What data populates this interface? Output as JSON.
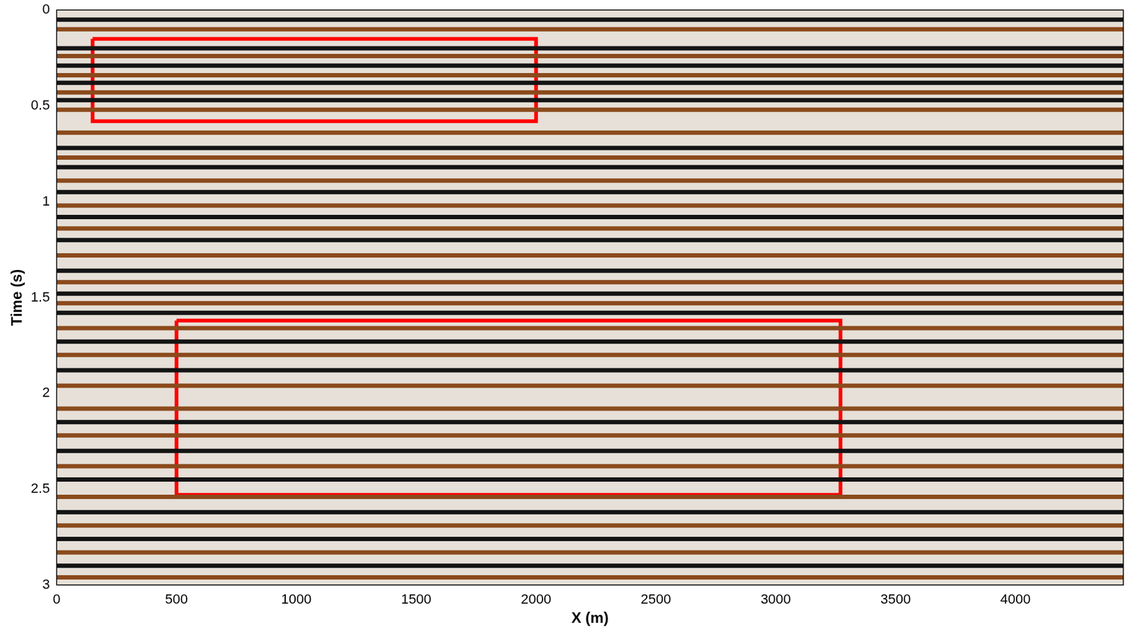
{
  "chart_data": {
    "type": "seismic_section",
    "x_label": "X (m)",
    "y_label": "Time (s)",
    "xlim": [
      0,
      4450
    ],
    "xticks": [
      0,
      500,
      1000,
      1500,
      2000,
      2500,
      3000,
      3500,
      4000
    ],
    "ylim": [
      0,
      3
    ],
    "yticks": [
      0,
      0.5,
      1,
      1.5,
      2,
      2.5,
      3
    ],
    "grid": false,
    "reflectors": [
      {
        "color": "#141414",
        "times": [
          0.05,
          0.2,
          0.29,
          0.38,
          0.47,
          0.72,
          0.82,
          0.95,
          1.08,
          1.2,
          1.36,
          1.48,
          1.58,
          1.73,
          1.88,
          2.15,
          2.3,
          2.45,
          2.62,
          2.76,
          2.9
        ]
      },
      {
        "color": "#8b4a1c",
        "times": [
          0.1,
          0.24,
          0.34,
          0.43,
          0.52,
          0.64,
          0.77,
          0.89,
          1.02,
          1.14,
          1.28,
          1.42,
          1.53,
          1.66,
          1.8,
          1.96,
          2.08,
          2.22,
          2.38,
          2.54,
          2.69,
          2.83,
          2.96
        ]
      }
    ],
    "boxes": [
      {
        "x": [
          150,
          2000
        ],
        "y": [
          0.15,
          0.58
        ],
        "color": "#ff0000"
      },
      {
        "x": [
          500,
          3270
        ],
        "y": [
          1.62,
          2.53
        ],
        "color": "#ff0000"
      }
    ]
  }
}
